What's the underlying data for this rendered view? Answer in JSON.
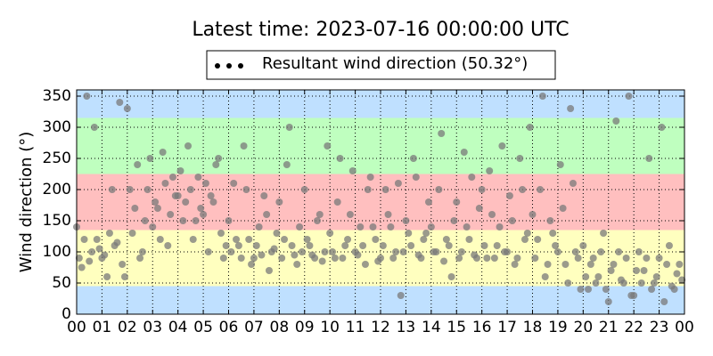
{
  "chart_data": {
    "type": "scatter",
    "title": "Latest time: 2023-07-16 00:00:00 UTC",
    "y_label": "Wind direction (°)",
    "xlim": [
      0,
      24
    ],
    "ylim": [
      0,
      360
    ],
    "xticks": [
      {
        "value": 0,
        "label": "00"
      },
      {
        "value": 1,
        "label": "01"
      },
      {
        "value": 2,
        "label": "02"
      },
      {
        "value": 3,
        "label": "03"
      },
      {
        "value": 4,
        "label": "04"
      },
      {
        "value": 5,
        "label": "05"
      },
      {
        "value": 6,
        "label": "06"
      },
      {
        "value": 7,
        "label": "07"
      },
      {
        "value": 8,
        "label": "08"
      },
      {
        "value": 9,
        "label": "09"
      },
      {
        "value": 10,
        "label": "10"
      },
      {
        "value": 11,
        "label": "11"
      },
      {
        "value": 12,
        "label": "12"
      },
      {
        "value": 13,
        "label": "13"
      },
      {
        "value": 14,
        "label": "14"
      },
      {
        "value": 15,
        "label": "15"
      },
      {
        "value": 16,
        "label": "16"
      },
      {
        "value": 17,
        "label": "17"
      },
      {
        "value": 18,
        "label": "18"
      },
      {
        "value": 19,
        "label": "19"
      },
      {
        "value": 20,
        "label": "20"
      },
      {
        "value": 21,
        "label": "21"
      },
      {
        "value": 22,
        "label": "22"
      },
      {
        "value": 23,
        "label": "23"
      },
      {
        "value": 24,
        "label": "00"
      }
    ],
    "yticks": [
      0,
      50,
      100,
      150,
      200,
      250,
      300,
      350
    ],
    "grid": true,
    "legend": "top",
    "bands": [
      {
        "from": 0,
        "to": 45,
        "color": "#bfe0ff"
      },
      {
        "from": 45,
        "to": 135,
        "color": "#ffffbf"
      },
      {
        "from": 135,
        "to": 225,
        "color": "#ffbfbf"
      },
      {
        "from": 225,
        "to": 315,
        "color": "#bfffbf"
      },
      {
        "from": 315,
        "to": 360,
        "color": "#bfe0ff"
      }
    ],
    "series": [
      {
        "name": "Resultant wind direction (50.32°)",
        "color": "#7a7a7a",
        "x": [
          0.1,
          0.3,
          0.5,
          0.7,
          0.9,
          1.1,
          1.3,
          1.5,
          1.7,
          1.9,
          2.1,
          2.3,
          2.5,
          2.7,
          2.9,
          3.1,
          3.3,
          3.5,
          3.7,
          3.9,
          4.1,
          4.3,
          4.5,
          4.7,
          4.9,
          5.1,
          5.3,
          5.5,
          5.7,
          5.9,
          6.1,
          6.3,
          6.5,
          6.7,
          6.9,
          7.1,
          7.3,
          7.5,
          7.7,
          7.9,
          8.1,
          8.3,
          8.5,
          8.7,
          8.9,
          9.1,
          9.3,
          9.5,
          9.7,
          9.9,
          10.1,
          10.3,
          10.5,
          10.7,
          10.9,
          11.1,
          11.3,
          11.5,
          11.7,
          11.9,
          12.1,
          12.3,
          12.5,
          12.7,
          12.9,
          13.1,
          13.3,
          13.5,
          13.7,
          13.9,
          14.1,
          14.3,
          14.5,
          14.7,
          14.9,
          15.1,
          15.3,
          15.5,
          15.7,
          15.9,
          16.1,
          16.3,
          16.5,
          16.7,
          16.9,
          17.1,
          17.3,
          17.5,
          17.7,
          17.9,
          18.1,
          18.3,
          18.5,
          18.7,
          18.9,
          19.1,
          19.3,
          19.5,
          19.7,
          19.9,
          20.1,
          20.3,
          20.5,
          20.7,
          20.9,
          21.1,
          21.3,
          21.5,
          21.7,
          21.9,
          22.1,
          22.3,
          22.5,
          22.7,
          22.9,
          23.1,
          23.3,
          23.5,
          23.7,
          23.9,
          0.0,
          0.2,
          0.4,
          0.6,
          0.8,
          1.0,
          1.2,
          1.4,
          1.6,
          1.8,
          2.0,
          2.2,
          2.4,
          2.6,
          2.8,
          3.0,
          3.2,
          3.4,
          3.6,
          3.8,
          4.0,
          4.2,
          4.4,
          4.6,
          4.8,
          5.0,
          5.2,
          5.4,
          5.6,
          5.8,
          6.0,
          6.2,
          6.4,
          6.6,
          6.8,
          7.0,
          7.2,
          7.4,
          7.6,
          7.8,
          8.0,
          8.2,
          8.4,
          8.6,
          8.8,
          9.0,
          9.2,
          9.4,
          9.6,
          9.8,
          10.0,
          10.2,
          10.4,
          10.6,
          10.8,
          11.0,
          11.2,
          11.4,
          11.6,
          11.8,
          12.0,
          12.2,
          12.4,
          12.6,
          12.8,
          13.0,
          13.2,
          13.4,
          13.6,
          13.8,
          14.0,
          14.2,
          14.4,
          14.6,
          14.8,
          15.0,
          15.2,
          15.4,
          15.6,
          15.8,
          16.0,
          16.2,
          16.4,
          16.6,
          16.8,
          17.0,
          17.2,
          17.4,
          17.6,
          17.8,
          18.0,
          18.2,
          18.4,
          18.6,
          18.8,
          19.0,
          19.2,
          19.4,
          19.6,
          19.8,
          20.0,
          20.2,
          20.4,
          20.6,
          20.8,
          21.0,
          21.2,
          21.4,
          21.6,
          21.8,
          22.0,
          22.2,
          22.4,
          22.6,
          22.8,
          23.0,
          23.2,
          23.4,
          23.6,
          23.8
        ],
        "values": [
          90,
          120,
          85,
          300,
          105,
          95,
          130,
          110,
          340,
          60,
          200,
          170,
          90,
          150,
          250,
          180,
          120,
          210,
          160,
          190,
          230,
          180,
          200,
          150,
          170,
          210,
          190,
          240,
          130,
          110,
          100,
          120,
          90,
          200,
          80,
          110,
          95,
          160,
          100,
          130,
          90,
          240,
          110,
          80,
          100,
          120,
          95,
          150,
          85,
          270,
          100,
          180,
          90,
          120,
          230,
          95,
          110,
          200,
          140,
          85,
          110,
          160,
          90,
          210,
          100,
          130,
          250,
          95,
          120,
          180,
          100,
          200,
          85,
          110,
          150,
          90,
          260,
          120,
          95,
          170,
          110,
          230,
          90,
          140,
          100,
          190,
          80,
          250,
          120,
          300,
          90,
          200,
          60,
          150,
          110,
          240,
          80,
          330,
          100,
          40,
          60,
          80,
          50,
          100,
          40,
          70,
          310,
          55,
          90,
          30,
          70,
          50,
          90,
          40,
          60,
          300,
          80,
          45,
          65,
          55,
          140,
          75,
          350,
          100,
          120,
          90,
          60,
          200,
          115,
          80,
          330,
          130,
          240,
          100,
          200,
          140,
          170,
          260,
          110,
          220,
          190,
          150,
          270,
          120,
          220,
          160,
          100,
          180,
          250,
          90,
          150,
          210,
          110,
          270,
          120,
          90,
          140,
          190,
          70,
          105,
          180,
          120,
          300,
          95,
          140,
          200,
          110,
          90,
          160,
          100,
          130,
          90,
          250,
          110,
          160,
          100,
          140,
          80,
          220,
          120,
          90,
          200,
          140,
          100,
          30,
          150,
          110,
          220,
          90,
          130,
          140,
          100,
          290,
          120,
          60,
          180,
          100,
          140,
          220,
          90,
          200,
          90,
          160,
          110,
          270,
          100,
          150,
          90,
          200,
          130,
          160,
          120,
          350,
          80,
          130,
          100,
          170,
          50,
          210,
          90,
          110,
          40,
          90,
          60,
          130,
          20,
          80,
          100,
          50,
          350,
          30,
          100,
          70,
          250,
          50,
          90,
          20,
          110,
          40,
          80
        ]
      }
    ]
  }
}
